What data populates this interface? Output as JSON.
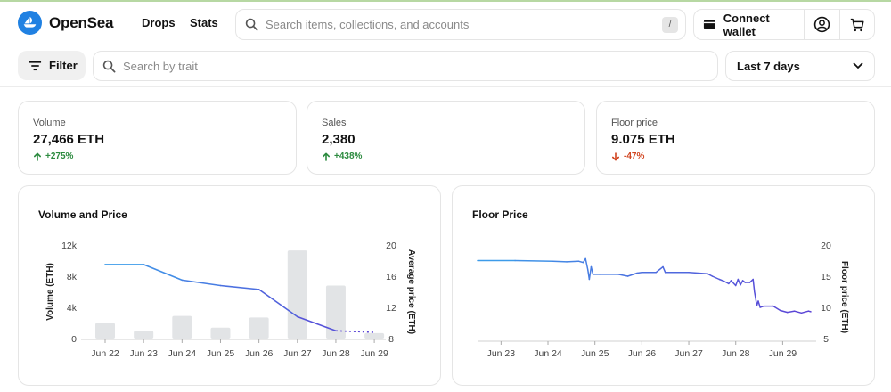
{
  "header": {
    "logo_text": "OpenSea",
    "nav": [
      "Drops",
      "Stats"
    ],
    "search_placeholder": "Search items, collections, and accounts",
    "search_shortcut": "/",
    "connect_wallet_label": "Connect wallet",
    "icons": [
      "wallet-icon",
      "profile-icon",
      "cart-icon",
      "search-icon"
    ]
  },
  "toolbar": {
    "filter_label": "Filter",
    "trait_search_placeholder": "Search by trait",
    "range_value": "Last 7 days"
  },
  "stats": [
    {
      "label": "Volume",
      "value": "27,466 ETH",
      "change": "+275%",
      "direction": "up"
    },
    {
      "label": "Sales",
      "value": "2,380",
      "change": "+438%",
      "direction": "up"
    },
    {
      "label": "Floor price",
      "value": "9.075 ETH",
      "change": "-47%",
      "direction": "down"
    }
  ],
  "colors": {
    "brand": "#2081e2",
    "up": "#2b8a3e",
    "down": "#d1431e",
    "bar": "#e2e4e6",
    "line_start": "#3d9be9",
    "line_end": "#5b45d6"
  },
  "chart_data": [
    {
      "type": "bar",
      "title": "Volume and Price",
      "categories": [
        "Jun 22",
        "Jun 23",
        "Jun 24",
        "Jun 25",
        "Jun 26",
        "Jun 27",
        "Jun 28",
        "Jun 29"
      ],
      "series": [
        {
          "name": "Volume (ETH)",
          "axis": "left",
          "type": "bar",
          "values": [
            2000,
            1000,
            2900,
            1400,
            2700,
            11300,
            6800,
            700
          ]
        },
        {
          "name": "Average price (ETH)",
          "axis": "right",
          "type": "line",
          "values": [
            17.5,
            17.5,
            15.5,
            14.8,
            14.3,
            10.8,
            9.0,
            8.8
          ]
        }
      ],
      "left_axis": {
        "label": "Volume (ETH)",
        "ticks": [
          "0",
          "4k",
          "8k",
          "12k"
        ],
        "tick_values": [
          0,
          4000,
          8000,
          12000
        ],
        "ylim": [
          0,
          12000
        ]
      },
      "right_axis": {
        "label": "Average price (ETH)",
        "ticks": [
          "8",
          "12",
          "16",
          "20"
        ],
        "tick_values": [
          8,
          12,
          16,
          20
        ],
        "ylim": [
          8,
          20
        ]
      }
    },
    {
      "type": "line",
      "title": "Floor Price",
      "categories": [
        "Jun 23",
        "Jun 24",
        "Jun 25",
        "Jun 26",
        "Jun 27",
        "Jun 28",
        "Jun 29"
      ],
      "x_range": [
        0,
        7.1
      ],
      "points": [
        [
          0,
          17.5
        ],
        [
          0.8,
          17.5
        ],
        [
          1.6,
          17.4
        ],
        [
          1.9,
          17.3
        ],
        [
          2.15,
          17.4
        ],
        [
          2.25,
          17.2
        ],
        [
          2.3,
          17.8
        ],
        [
          2.35,
          16.0
        ],
        [
          2.38,
          14.5
        ],
        [
          2.42,
          16.5
        ],
        [
          2.46,
          15.3
        ],
        [
          2.6,
          15.3
        ],
        [
          3.0,
          15.3
        ],
        [
          3.2,
          15.0
        ],
        [
          3.4,
          15.5
        ],
        [
          3.5,
          15.6
        ],
        [
          3.8,
          15.6
        ],
        [
          3.95,
          16.5
        ],
        [
          4.0,
          15.6
        ],
        [
          4.5,
          15.6
        ],
        [
          4.9,
          15.4
        ],
        [
          5.0,
          15.0
        ],
        [
          5.15,
          14.5
        ],
        [
          5.25,
          14.2
        ],
        [
          5.35,
          13.8
        ],
        [
          5.4,
          14.3
        ],
        [
          5.5,
          13.5
        ],
        [
          5.55,
          14.5
        ],
        [
          5.6,
          13.6
        ],
        [
          5.65,
          14.3
        ],
        [
          5.7,
          14.0
        ],
        [
          5.8,
          14.0
        ],
        [
          5.87,
          14.5
        ],
        [
          5.9,
          12.5
        ],
        [
          5.95,
          10.3
        ],
        [
          5.98,
          11.0
        ],
        [
          6.02,
          10.0
        ],
        [
          6.1,
          10.2
        ],
        [
          6.3,
          10.2
        ],
        [
          6.45,
          9.5
        ],
        [
          6.6,
          9.2
        ],
        [
          6.75,
          9.4
        ],
        [
          6.9,
          9.1
        ],
        [
          7.05,
          9.4
        ],
        [
          7.1,
          9.3
        ]
      ],
      "right_axis": {
        "label": "Floor price (ETH)",
        "ticks": [
          "5",
          "10",
          "15",
          "20"
        ],
        "tick_values": [
          5,
          10,
          15,
          20
        ],
        "ylim": [
          5,
          20
        ]
      }
    }
  ]
}
